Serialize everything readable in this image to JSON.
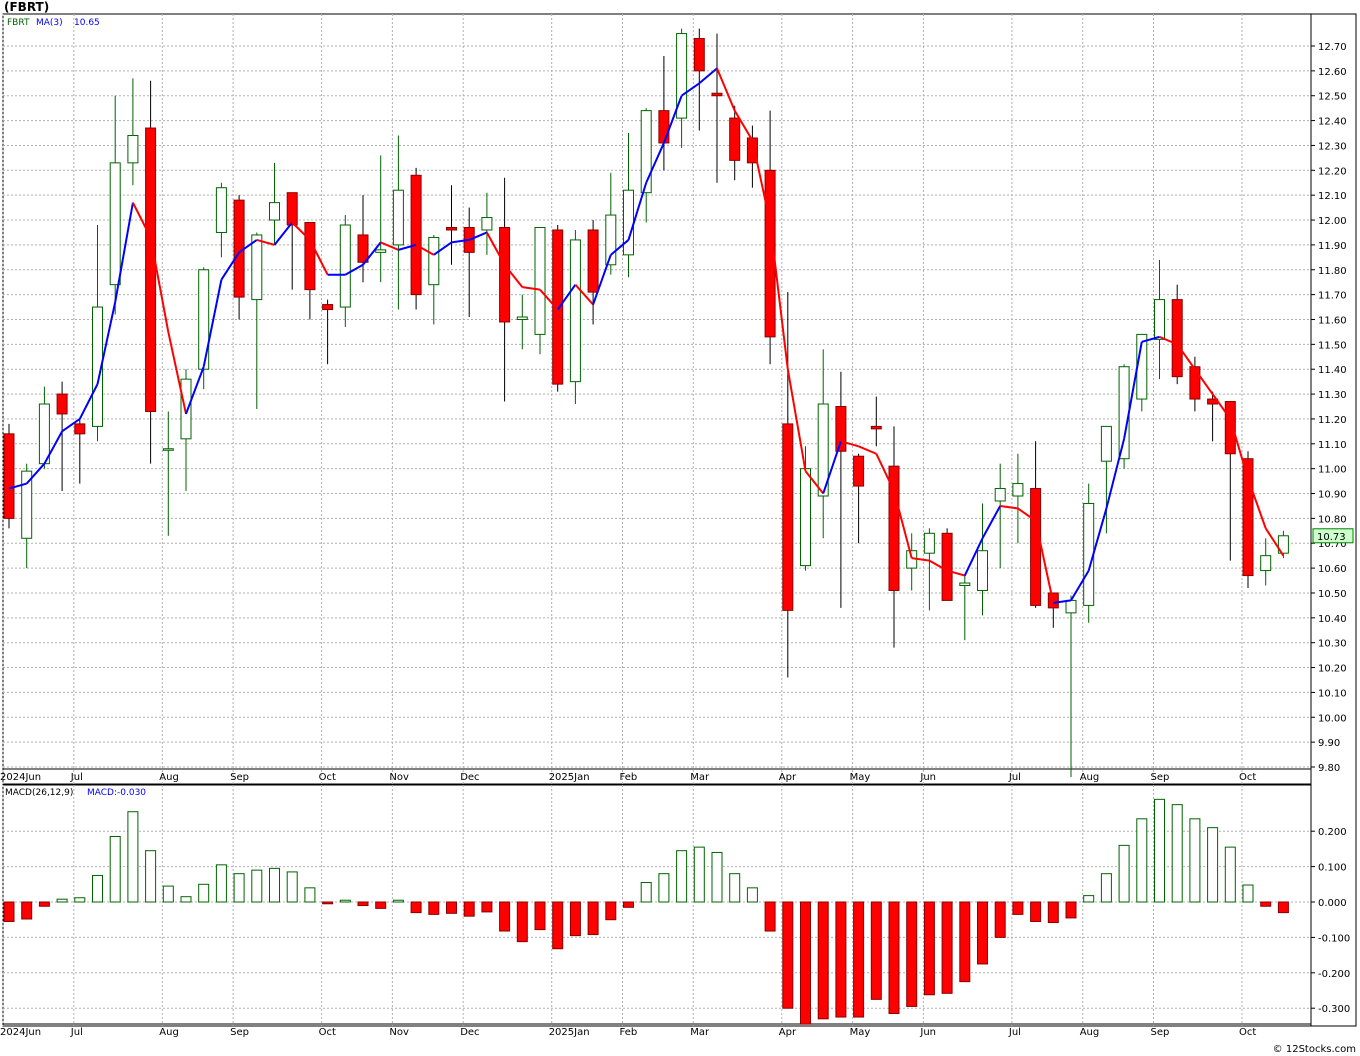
{
  "title": "(FBRT)",
  "legend": {
    "ticker": "FBRT",
    "ma_label": "MA(3)",
    "ma_value": "10.65"
  },
  "macd_legend": {
    "label": "MACD(26,12,9)",
    "value": "MACD:-0.030"
  },
  "last_price_label": "10.73",
  "footer": "© 12Stocks.com",
  "colors": {
    "up_fill": "#ffffff",
    "up_stroke": "#006400",
    "down_fill": "#ff0000",
    "down_stroke": "#8b0000",
    "ma_up": "#0000ff",
    "ma_down": "#ff0000",
    "grid": "#b0b0b0",
    "price_box_bg": "#ccffcc",
    "price_box_border": "#008000"
  },
  "chart_data": [
    {
      "type": "candlestick",
      "title": "",
      "period": "weekly",
      "ylim": [
        9.75,
        12.83
      ],
      "grid": true,
      "y_ticks": [
        "12.70",
        "12.60",
        "12.50",
        "12.40",
        "12.30",
        "12.20",
        "12.10",
        "12.00",
        "11.90",
        "11.80",
        "11.70",
        "11.60",
        "11.50",
        "11.40",
        "11.30",
        "11.20",
        "11.10",
        "11.00",
        "10.90",
        "10.80",
        "10.70",
        "10.60",
        "10.50",
        "10.40",
        "10.30",
        "10.20",
        "10.10",
        "10.00",
        "9.90",
        "9.80"
      ],
      "x_ticks": [
        {
          "label": "2024Jun",
          "bar": 0
        },
        {
          "label": "Jul",
          "bar": 4
        },
        {
          "label": "Aug",
          "bar": 9
        },
        {
          "label": "Sep",
          "bar": 13
        },
        {
          "label": "Oct",
          "bar": 18
        },
        {
          "label": "Nov",
          "bar": 22
        },
        {
          "label": "Dec",
          "bar": 26
        },
        {
          "label": "2025Jan",
          "bar": 31
        },
        {
          "label": "Feb",
          "bar": 35
        },
        {
          "label": "Mar",
          "bar": 39
        },
        {
          "label": "Apr",
          "bar": 44
        },
        {
          "label": "May",
          "bar": 48
        },
        {
          "label": "Jun",
          "bar": 52
        },
        {
          "label": "Jul",
          "bar": 57
        },
        {
          "label": "Aug",
          "bar": 61
        },
        {
          "label": "Sep",
          "bar": 65
        },
        {
          "label": "Oct",
          "bar": 70
        }
      ],
      "candles": [
        {
          "o": 11.14,
          "h": 11.18,
          "l": 10.76,
          "c": 10.8
        },
        {
          "o": 10.72,
          "h": 11.02,
          "l": 10.6,
          "c": 10.99
        },
        {
          "o": 11.02,
          "h": 11.33,
          "l": 11.0,
          "c": 11.26
        },
        {
          "o": 11.3,
          "h": 11.35,
          "l": 10.91,
          "c": 11.22
        },
        {
          "o": 11.18,
          "h": 11.2,
          "l": 10.94,
          "c": 11.14
        },
        {
          "o": 11.17,
          "h": 11.98,
          "l": 11.11,
          "c": 11.65
        },
        {
          "o": 11.74,
          "h": 12.5,
          "l": 11.62,
          "c": 12.23
        },
        {
          "o": 12.23,
          "h": 12.57,
          "l": 12.14,
          "c": 12.34
        },
        {
          "o": 12.37,
          "h": 12.56,
          "l": 11.02,
          "c": 11.23
        },
        {
          "o": 11.08,
          "h": 11.23,
          "l": 10.73,
          "c": 11.08
        },
        {
          "o": 11.12,
          "h": 11.4,
          "l": 10.91,
          "c": 11.36
        },
        {
          "o": 11.4,
          "h": 11.81,
          "l": 11.32,
          "c": 11.8
        },
        {
          "o": 11.95,
          "h": 12.15,
          "l": 11.85,
          "c": 12.13
        },
        {
          "o": 12.08,
          "h": 12.1,
          "l": 11.6,
          "c": 11.69
        },
        {
          "o": 11.68,
          "h": 11.95,
          "l": 11.24,
          "c": 11.94
        },
        {
          "o": 12.0,
          "h": 12.23,
          "l": 11.9,
          "c": 12.07
        },
        {
          "o": 12.11,
          "h": 12.11,
          "l": 11.72,
          "c": 11.98
        },
        {
          "o": 11.99,
          "h": 11.99,
          "l": 11.6,
          "c": 11.72
        },
        {
          "o": 11.66,
          "h": 11.68,
          "l": 11.42,
          "c": 11.64
        },
        {
          "o": 11.65,
          "h": 12.02,
          "l": 11.57,
          "c": 11.98
        },
        {
          "o": 11.94,
          "h": 12.1,
          "l": 11.75,
          "c": 11.83
        },
        {
          "o": 11.87,
          "h": 12.26,
          "l": 11.75,
          "c": 11.88
        },
        {
          "o": 11.9,
          "h": 12.34,
          "l": 11.64,
          "c": 12.12
        },
        {
          "o": 12.18,
          "h": 12.21,
          "l": 11.64,
          "c": 11.7
        },
        {
          "o": 11.74,
          "h": 11.94,
          "l": 11.58,
          "c": 11.93
        },
        {
          "o": 11.97,
          "h": 12.14,
          "l": 11.82,
          "c": 11.96
        },
        {
          "o": 11.97,
          "h": 12.05,
          "l": 11.61,
          "c": 11.87
        },
        {
          "o": 11.96,
          "h": 12.11,
          "l": 11.86,
          "c": 12.01
        },
        {
          "o": 11.97,
          "h": 12.17,
          "l": 11.27,
          "c": 11.59
        },
        {
          "o": 11.6,
          "h": 11.7,
          "l": 11.48,
          "c": 11.61
        },
        {
          "o": 11.54,
          "h": 11.97,
          "l": 11.46,
          "c": 11.97
        },
        {
          "o": 11.96,
          "h": 11.98,
          "l": 11.31,
          "c": 11.34
        },
        {
          "o": 11.35,
          "h": 11.96,
          "l": 11.26,
          "c": 11.92
        },
        {
          "o": 11.96,
          "h": 12.0,
          "l": 11.58,
          "c": 11.71
        },
        {
          "o": 11.82,
          "h": 12.19,
          "l": 11.78,
          "c": 12.02
        },
        {
          "o": 11.86,
          "h": 12.35,
          "l": 11.77,
          "c": 12.12
        },
        {
          "o": 12.11,
          "h": 12.45,
          "l": 11.99,
          "c": 12.44
        },
        {
          "o": 12.44,
          "h": 12.66,
          "l": 12.2,
          "c": 12.31
        },
        {
          "o": 12.41,
          "h": 12.77,
          "l": 12.29,
          "c": 12.75
        },
        {
          "o": 12.73,
          "h": 12.77,
          "l": 12.36,
          "c": 12.6
        },
        {
          "o": 12.51,
          "h": 12.75,
          "l": 12.15,
          "c": 12.5
        },
        {
          "o": 12.41,
          "h": 12.46,
          "l": 12.16,
          "c": 12.24
        },
        {
          "o": 12.33,
          "h": 12.38,
          "l": 12.13,
          "c": 12.23
        },
        {
          "o": 12.2,
          "h": 12.44,
          "l": 11.42,
          "c": 11.53
        },
        {
          "o": 11.18,
          "h": 11.71,
          "l": 10.16,
          "c": 10.43
        },
        {
          "o": 10.61,
          "h": 11.09,
          "l": 10.59,
          "c": 11.0
        },
        {
          "o": 10.89,
          "h": 11.48,
          "l": 10.72,
          "c": 11.26
        },
        {
          "o": 11.25,
          "h": 11.39,
          "l": 10.44,
          "c": 11.07
        },
        {
          "o": 11.05,
          "h": 11.06,
          "l": 10.7,
          "c": 10.93
        },
        {
          "o": 11.17,
          "h": 11.29,
          "l": 11.09,
          "c": 11.16
        },
        {
          "o": 11.01,
          "h": 11.17,
          "l": 10.28,
          "c": 10.51
        },
        {
          "o": 10.6,
          "h": 10.74,
          "l": 10.51,
          "c": 10.67
        },
        {
          "o": 10.66,
          "h": 10.76,
          "l": 10.43,
          "c": 10.74
        },
        {
          "o": 10.74,
          "h": 10.76,
          "l": 10.47,
          "c": 10.47
        },
        {
          "o": 10.53,
          "h": 10.57,
          "l": 10.31,
          "c": 10.54
        },
        {
          "o": 10.51,
          "h": 10.86,
          "l": 10.41,
          "c": 10.67
        },
        {
          "o": 10.87,
          "h": 11.02,
          "l": 10.6,
          "c": 10.92
        },
        {
          "o": 10.89,
          "h": 11.06,
          "l": 10.7,
          "c": 10.94
        },
        {
          "o": 10.92,
          "h": 11.11,
          "l": 10.44,
          "c": 10.45
        },
        {
          "o": 10.5,
          "h": 10.5,
          "l": 10.36,
          "c": 10.44
        },
        {
          "o": 10.42,
          "h": 10.49,
          "l": 9.76,
          "c": 10.47
        },
        {
          "o": 10.45,
          "h": 10.94,
          "l": 10.38,
          "c": 10.86
        },
        {
          "o": 11.03,
          "h": 11.17,
          "l": 10.74,
          "c": 11.17
        },
        {
          "o": 11.04,
          "h": 11.42,
          "l": 11.0,
          "c": 11.41
        },
        {
          "o": 11.28,
          "h": 11.53,
          "l": 11.23,
          "c": 11.54
        },
        {
          "o": 11.52,
          "h": 11.84,
          "l": 11.36,
          "c": 11.68
        },
        {
          "o": 11.68,
          "h": 11.74,
          "l": 11.34,
          "c": 11.37
        },
        {
          "o": 11.41,
          "h": 11.45,
          "l": 11.23,
          "c": 11.28
        },
        {
          "o": 11.28,
          "h": 11.31,
          "l": 11.11,
          "c": 11.26
        },
        {
          "o": 11.27,
          "h": 11.27,
          "l": 10.63,
          "c": 11.06
        },
        {
          "o": 11.04,
          "h": 11.07,
          "l": 10.52,
          "c": 10.57
        },
        {
          "o": 10.59,
          "h": 10.72,
          "l": 10.53,
          "c": 10.65
        },
        {
          "o": 10.66,
          "h": 10.75,
          "l": 10.64,
          "c": 10.73
        }
      ],
      "ma3": [
        10.92,
        10.94,
        11.02,
        11.15,
        11.2,
        11.34,
        11.67,
        12.07,
        11.93,
        11.55,
        11.22,
        11.41,
        11.76,
        11.87,
        11.92,
        11.9,
        11.99,
        11.92,
        11.78,
        11.78,
        11.82,
        11.91,
        11.88,
        11.9,
        11.86,
        11.91,
        11.92,
        11.95,
        11.82,
        11.73,
        11.72,
        11.64,
        11.74,
        11.66,
        11.86,
        11.92,
        12.15,
        12.31,
        12.5,
        12.55,
        12.61,
        12.44,
        12.32,
        11.99,
        11.4,
        10.99,
        10.9,
        11.11,
        11.09,
        11.06,
        10.91,
        10.64,
        10.63,
        10.59,
        10.57,
        10.72,
        10.85,
        10.84,
        10.79,
        10.46,
        10.47,
        10.59,
        10.84,
        11.12,
        11.51,
        11.53,
        11.5,
        11.4,
        11.3,
        11.2,
        10.96,
        10.76,
        10.65
      ]
    },
    {
      "type": "bar",
      "title": "",
      "label": "MACD(26,12,9)",
      "ylim": [
        -0.35,
        0.3
      ],
      "grid": true,
      "y_ticks": [
        "0.200",
        "0.100",
        "0.000",
        "-0.100",
        "-0.200",
        "-0.300"
      ],
      "values": [
        -0.055,
        -0.048,
        -0.012,
        0.008,
        0.012,
        0.075,
        0.185,
        0.255,
        0.145,
        0.045,
        0.015,
        0.05,
        0.105,
        0.08,
        0.09,
        0.095,
        0.085,
        0.04,
        -0.005,
        0.005,
        -0.01,
        -0.018,
        0.005,
        -0.03,
        -0.035,
        -0.032,
        -0.04,
        -0.028,
        -0.082,
        -0.112,
        -0.078,
        -0.132,
        -0.095,
        -0.092,
        -0.05,
        -0.015,
        0.055,
        0.08,
        0.145,
        0.155,
        0.14,
        0.08,
        0.04,
        -0.082,
        -0.3,
        -0.345,
        -0.33,
        -0.325,
        -0.325,
        -0.275,
        -0.315,
        -0.295,
        -0.262,
        -0.258,
        -0.225,
        -0.175,
        -0.1,
        -0.035,
        -0.055,
        -0.058,
        -0.045,
        0.018,
        0.08,
        0.16,
        0.235,
        0.29,
        0.275,
        0.235,
        0.21,
        0.155,
        0.048,
        -0.012,
        -0.03
      ]
    }
  ]
}
